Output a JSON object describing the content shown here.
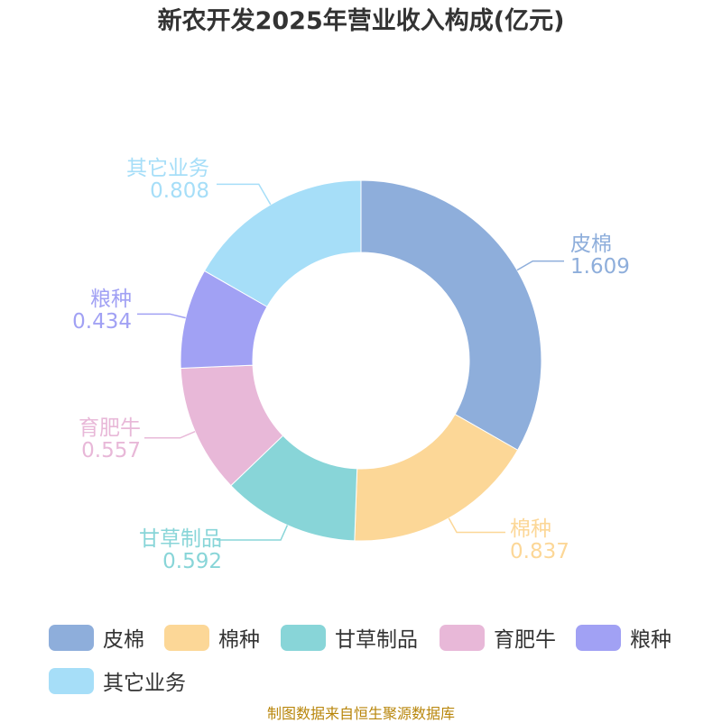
{
  "title": "新农开发2025年营业收入构成(亿元)",
  "source": "制图数据来自恒生聚源数据库",
  "chart_data": {
    "type": "pie",
    "donut": true,
    "title": "新农开发2025年营业收入构成(亿元)",
    "legend_position": "bottom",
    "slices": [
      {
        "label": "皮棉",
        "value": 1.609,
        "value_text": "1.609",
        "color": "#8eaedb"
      },
      {
        "label": "棉种",
        "value": 0.837,
        "value_text": "0.837",
        "color": "#fcd797"
      },
      {
        "label": "甘草制品",
        "value": 0.592,
        "value_text": "0.592",
        "color": "#88d5d8"
      },
      {
        "label": "育肥牛",
        "value": 0.557,
        "value_text": "0.557",
        "color": "#e8b8d8"
      },
      {
        "label": "粮种",
        "value": 0.434,
        "value_text": "0.434",
        "color": "#a1a1f4"
      },
      {
        "label": "其它业务",
        "value": 0.808,
        "value_text": "0.808",
        "color": "#a6def8"
      }
    ]
  }
}
